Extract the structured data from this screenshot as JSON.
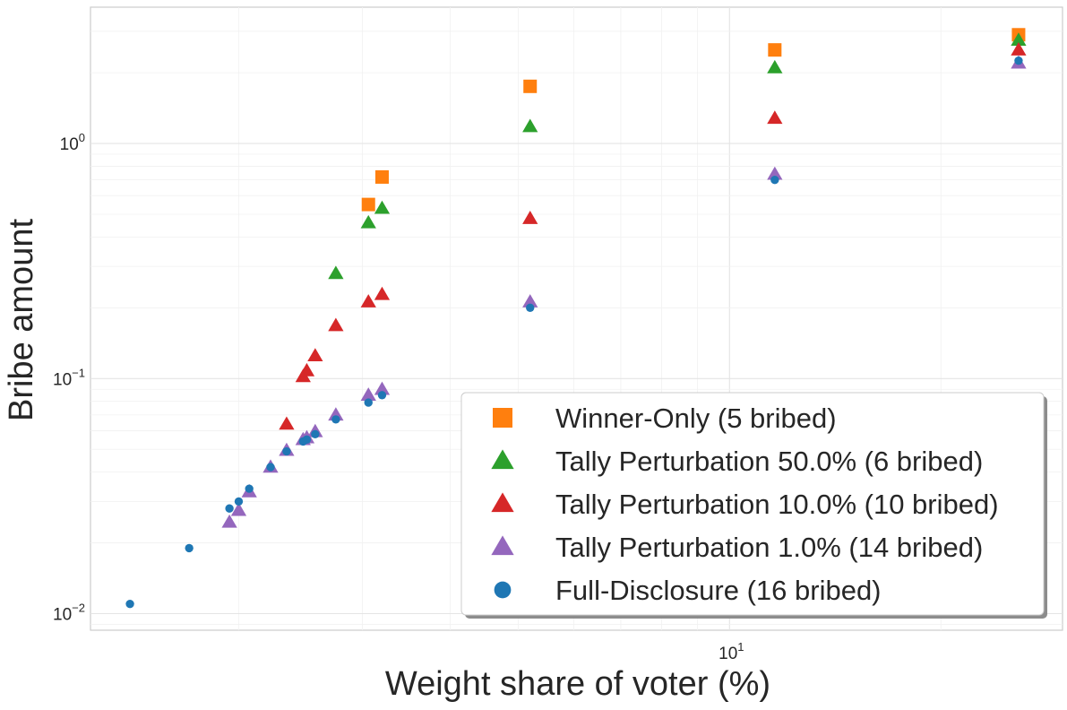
{
  "chart_data": {
    "type": "scatter",
    "xlabel": "Weight share of voter (%)",
    "ylabel": "Bribe amount",
    "x_scale": "log",
    "y_scale": "log",
    "xlim": [
      1.23,
      29.8
    ],
    "ylim": [
      0.0085,
      3.8
    ],
    "x_ticks": [
      {
        "base": "10",
        "exp": "1",
        "value": 10
      }
    ],
    "y_ticks": [
      {
        "base": "10",
        "exp": "−2",
        "value": 0.01
      },
      {
        "base": "10",
        "exp": "−1",
        "value": 0.1
      },
      {
        "base": "10",
        "exp": "0",
        "value": 1
      }
    ],
    "grid": true,
    "legend_position": "lower-right",
    "series": [
      {
        "name": "Winner-Only (5 bribed)",
        "marker": "square",
        "color": "#ff7f0e",
        "points": [
          [
            3.06,
            0.55
          ],
          [
            3.2,
            0.72
          ],
          [
            5.2,
            1.75
          ],
          [
            11.6,
            2.5
          ],
          [
            25.8,
            2.9
          ]
        ]
      },
      {
        "name": "Tally Perturbation 50.0% (6 bribed)",
        "marker": "triangle",
        "color": "#2ca02c",
        "points": [
          [
            2.75,
            0.28
          ],
          [
            3.06,
            0.46
          ],
          [
            3.2,
            0.53
          ],
          [
            5.2,
            1.18
          ],
          [
            11.6,
            2.1
          ],
          [
            25.8,
            2.75
          ]
        ]
      },
      {
        "name": "Tally Perturbation 10.0% (10 bribed)",
        "marker": "triangle",
        "color": "#d62728",
        "points": [
          [
            2.34,
            0.064
          ],
          [
            2.47,
            0.102
          ],
          [
            2.5,
            0.108
          ],
          [
            2.57,
            0.125
          ],
          [
            2.75,
            0.168
          ],
          [
            3.06,
            0.212
          ],
          [
            3.2,
            0.228
          ],
          [
            5.2,
            0.48
          ],
          [
            11.6,
            1.28
          ],
          [
            25.8,
            2.5
          ]
        ]
      },
      {
        "name": "Tally Perturbation 1.0% (14 bribed)",
        "marker": "triangle",
        "color": "#9467bd",
        "points": [
          [
            1.94,
            0.0245
          ],
          [
            2.0,
            0.0275
          ],
          [
            2.07,
            0.033
          ],
          [
            2.22,
            0.042
          ],
          [
            2.34,
            0.0495
          ],
          [
            2.47,
            0.055
          ],
          [
            2.5,
            0.056
          ],
          [
            2.57,
            0.0595
          ],
          [
            2.75,
            0.07
          ],
          [
            3.06,
            0.085
          ],
          [
            3.2,
            0.09
          ],
          [
            5.2,
            0.212
          ],
          [
            11.6,
            0.74
          ],
          [
            25.8,
            2.2
          ]
        ]
      },
      {
        "name": "Full-Disclosure (16 bribed)",
        "marker": "circle",
        "color": "#1f77b4",
        "points": [
          [
            1.4,
            0.011
          ],
          [
            1.7,
            0.019
          ],
          [
            1.94,
            0.028
          ],
          [
            2.0,
            0.03
          ],
          [
            2.07,
            0.034
          ],
          [
            2.22,
            0.042
          ],
          [
            2.34,
            0.049
          ],
          [
            2.47,
            0.054
          ],
          [
            2.5,
            0.055
          ],
          [
            2.57,
            0.058
          ],
          [
            2.75,
            0.067
          ],
          [
            3.06,
            0.079
          ],
          [
            3.2,
            0.085
          ],
          [
            5.2,
            0.2
          ],
          [
            11.6,
            0.7
          ],
          [
            25.8,
            2.25
          ]
        ]
      }
    ]
  }
}
